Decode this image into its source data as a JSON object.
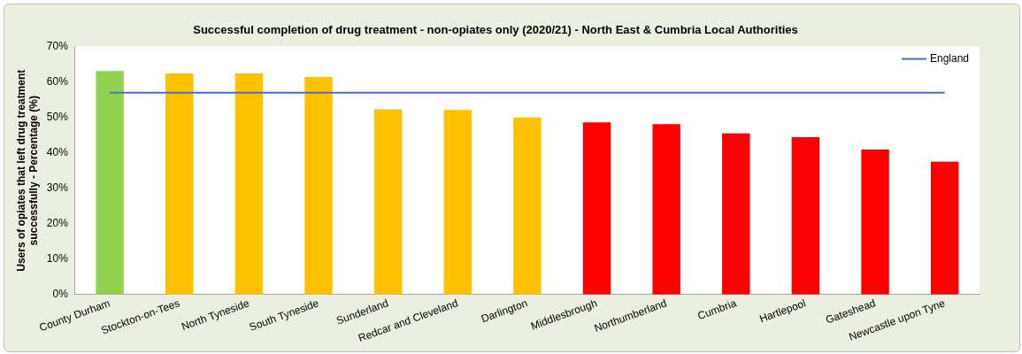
{
  "chart_data": {
    "type": "bar",
    "title": "Successful completion of drug treatment - non-opiates only (2020/21) - North East & Cumbria Local Authorities",
    "ylabel": "Users of opiates that left drug treatment successfully - Percentage (%)",
    "categories": [
      "County Durham",
      "Stockton-on-Tees",
      "North Tyneside",
      "South Tyneside",
      "Sunderland",
      "Redcar and Cleveland",
      "Darlington",
      "Middlesbrough",
      "Northumberland",
      "Cumbria",
      "Hartlepool",
      "Gateshead",
      "Newcastle upon Tyne"
    ],
    "series": [
      {
        "values": [
          63.1,
          62.4,
          62.4,
          61.4,
          52.3,
          52.1,
          50.0,
          48.6,
          48.1,
          45.5,
          44.4,
          40.9,
          37.5
        ],
        "colors": [
          "#92d050",
          "#ffc000",
          "#ffc000",
          "#ffc000",
          "#ffc000",
          "#ffc000",
          "#ffc000",
          "#ff0000",
          "#ff0000",
          "#ff0000",
          "#ff0000",
          "#ff0000",
          "#ff0000"
        ]
      },
      {
        "type": "line",
        "name": "England",
        "color": "#4472c4",
        "values": [
          57.0,
          57.0,
          57.0,
          57.0,
          57.0,
          57.0,
          57.0,
          57.0,
          57.0,
          57.0,
          57.0,
          57.0,
          57.0
        ]
      }
    ],
    "ylim": [
      0,
      70
    ],
    "yticks": [
      {
        "value": 0,
        "label": "0%"
      },
      {
        "value": 10,
        "label": "10%"
      },
      {
        "value": 20,
        "label": "20%"
      },
      {
        "value": 30,
        "label": "30%"
      },
      {
        "value": 40,
        "label": "40%"
      },
      {
        "value": 50,
        "label": "50%"
      },
      {
        "value": 60,
        "label": "60%"
      },
      {
        "value": 70,
        "label": "70%"
      }
    ],
    "grid": false,
    "legend": "top right",
    "marker": "none"
  }
}
